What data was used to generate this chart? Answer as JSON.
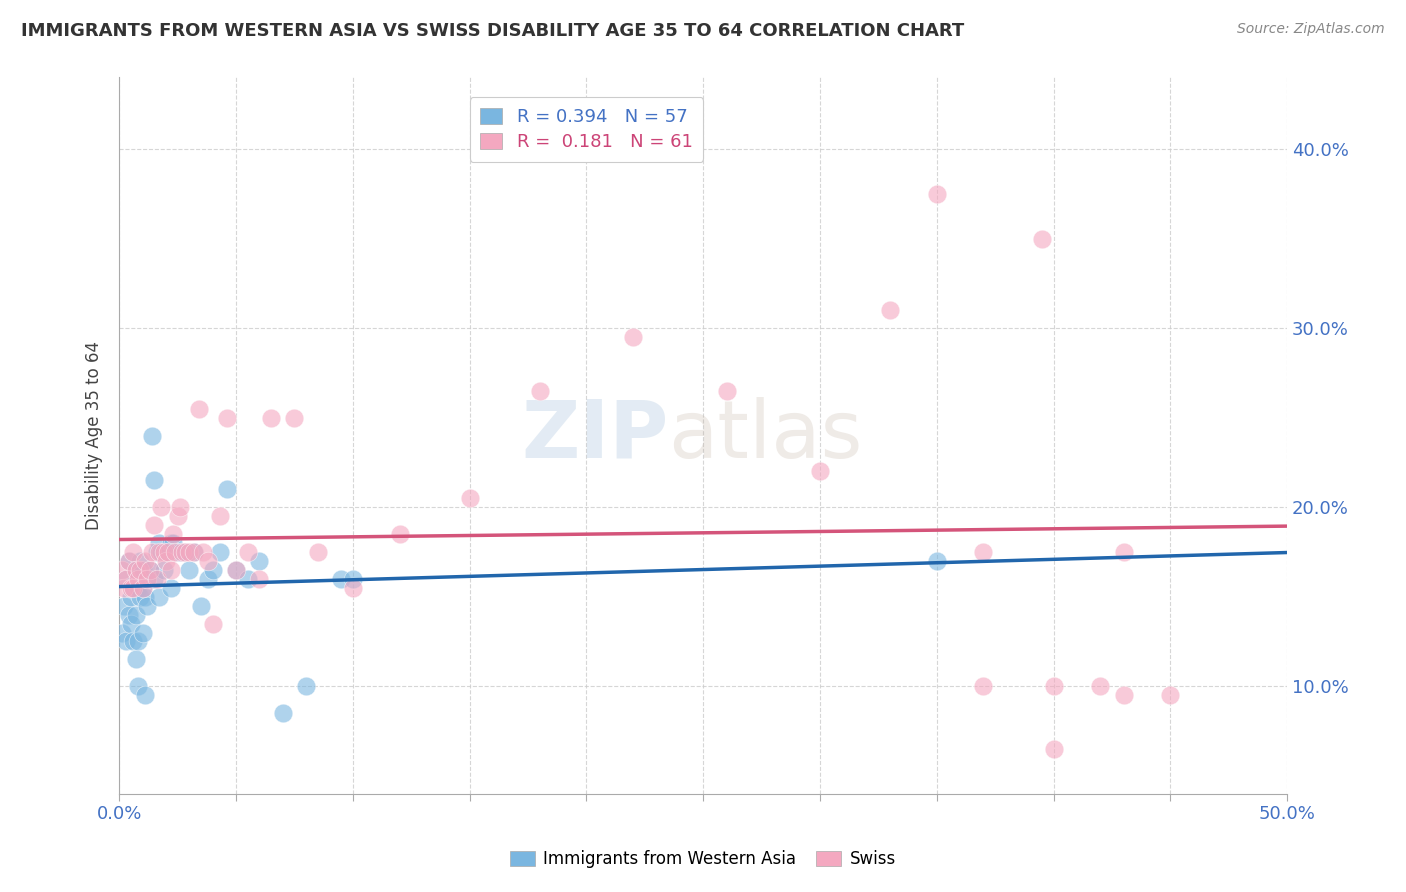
{
  "title": "IMMIGRANTS FROM WESTERN ASIA VS SWISS DISABILITY AGE 35 TO 64 CORRELATION CHART",
  "source": "Source: ZipAtlas.com",
  "ylabel": "Disability Age 35 to 64",
  "xlim": [
    0.0,
    0.5
  ],
  "ylim": [
    0.04,
    0.44
  ],
  "xtick_positions": [
    0.0,
    0.05,
    0.1,
    0.15,
    0.2,
    0.25,
    0.3,
    0.35,
    0.4,
    0.45,
    0.5
  ],
  "xtick_labels": [
    "0.0%",
    "",
    "",
    "",
    "",
    "",
    "",
    "",
    "",
    "",
    "50.0%"
  ],
  "ytick_positions": [
    0.1,
    0.2,
    0.3,
    0.4
  ],
  "ytick_labels": [
    "10.0%",
    "20.0%",
    "30.0%",
    "40.0%"
  ],
  "blue_R": "0.394",
  "blue_N": "57",
  "pink_R": "0.181",
  "pink_N": "61",
  "blue_color": "#7ab6e0",
  "pink_color": "#f4a8c0",
  "blue_line_color": "#2166ac",
  "pink_line_color": "#d4547a",
  "background_color": "#ffffff",
  "grid_color": "#cccccc",
  "watermark": "ZIPatlas",
  "legend_label_blue": "Immigrants from Western Asia",
  "legend_label_pink": "Swiss",
  "blue_scatter_x": [
    0.001,
    0.002,
    0.003,
    0.003,
    0.004,
    0.004,
    0.005,
    0.005,
    0.006,
    0.006,
    0.007,
    0.007,
    0.007,
    0.008,
    0.008,
    0.008,
    0.009,
    0.009,
    0.01,
    0.01,
    0.01,
    0.011,
    0.011,
    0.012,
    0.012,
    0.013,
    0.014,
    0.015,
    0.015,
    0.016,
    0.017,
    0.017,
    0.018,
    0.019,
    0.02,
    0.021,
    0.022,
    0.022,
    0.023,
    0.025,
    0.026,
    0.028,
    0.03,
    0.032,
    0.035,
    0.038,
    0.04,
    0.043,
    0.046,
    0.05,
    0.055,
    0.06,
    0.07,
    0.08,
    0.095,
    0.1,
    0.35
  ],
  "blue_scatter_y": [
    0.13,
    0.145,
    0.125,
    0.16,
    0.14,
    0.17,
    0.15,
    0.135,
    0.155,
    0.125,
    0.165,
    0.14,
    0.115,
    0.155,
    0.125,
    0.1,
    0.15,
    0.17,
    0.155,
    0.13,
    0.165,
    0.15,
    0.095,
    0.16,
    0.145,
    0.165,
    0.24,
    0.16,
    0.215,
    0.175,
    0.18,
    0.15,
    0.175,
    0.165,
    0.175,
    0.175,
    0.18,
    0.155,
    0.18,
    0.175,
    0.175,
    0.175,
    0.165,
    0.175,
    0.145,
    0.16,
    0.165,
    0.175,
    0.21,
    0.165,
    0.16,
    0.17,
    0.085,
    0.1,
    0.16,
    0.16,
    0.17
  ],
  "pink_scatter_x": [
    0.001,
    0.002,
    0.003,
    0.004,
    0.005,
    0.006,
    0.006,
    0.007,
    0.008,
    0.009,
    0.01,
    0.011,
    0.012,
    0.013,
    0.014,
    0.015,
    0.016,
    0.017,
    0.018,
    0.019,
    0.02,
    0.021,
    0.022,
    0.023,
    0.024,
    0.025,
    0.026,
    0.027,
    0.028,
    0.03,
    0.032,
    0.034,
    0.036,
    0.038,
    0.04,
    0.043,
    0.046,
    0.05,
    0.055,
    0.06,
    0.065,
    0.075,
    0.085,
    0.1,
    0.12,
    0.15,
    0.18,
    0.22,
    0.26,
    0.3,
    0.33,
    0.35,
    0.37,
    0.395,
    0.4,
    0.42,
    0.43,
    0.45,
    0.37,
    0.4,
    0.43
  ],
  "pink_scatter_y": [
    0.165,
    0.155,
    0.16,
    0.17,
    0.155,
    0.155,
    0.175,
    0.165,
    0.16,
    0.165,
    0.155,
    0.17,
    0.16,
    0.165,
    0.175,
    0.19,
    0.16,
    0.175,
    0.2,
    0.175,
    0.17,
    0.175,
    0.165,
    0.185,
    0.175,
    0.195,
    0.2,
    0.175,
    0.175,
    0.175,
    0.175,
    0.255,
    0.175,
    0.17,
    0.135,
    0.195,
    0.25,
    0.165,
    0.175,
    0.16,
    0.25,
    0.25,
    0.175,
    0.155,
    0.185,
    0.205,
    0.265,
    0.295,
    0.265,
    0.22,
    0.31,
    0.375,
    0.175,
    0.35,
    0.065,
    0.1,
    0.095,
    0.095,
    0.1,
    0.1,
    0.175
  ]
}
